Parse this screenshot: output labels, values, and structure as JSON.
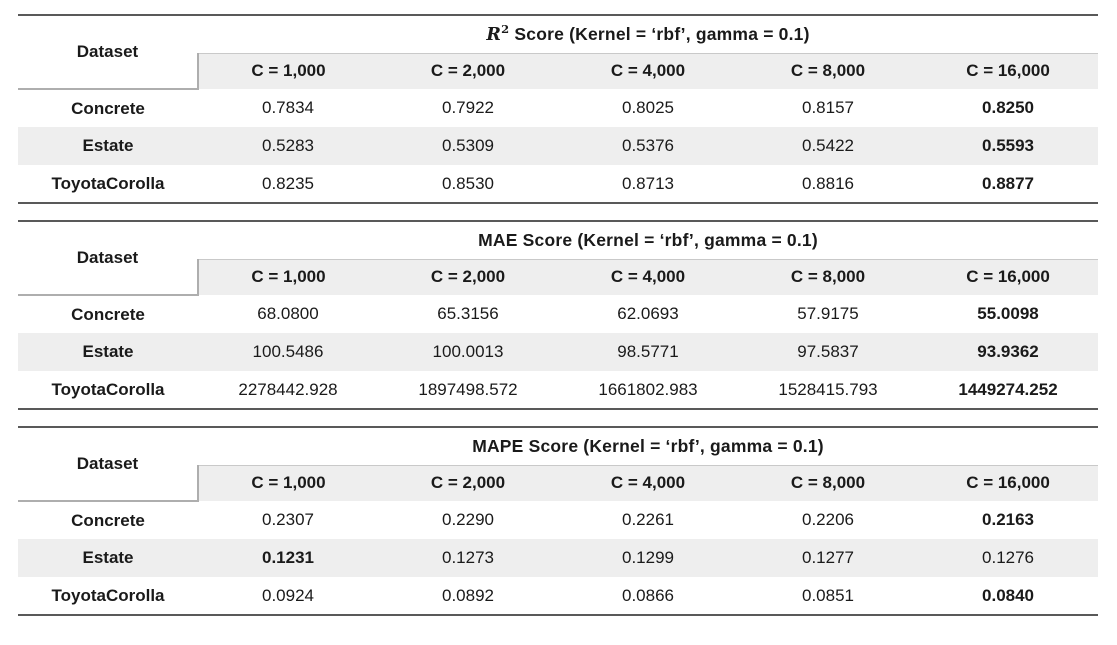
{
  "colors": {
    "text": "#1a1a1a",
    "band_fill": "#eeeeee",
    "outer_rule": "#595959",
    "inner_rule": "#aeaeae",
    "thin_rule": "#c9c9c9"
  },
  "header_label": "Dataset",
  "columns": [
    "C = 1,000",
    "C = 2,000",
    "C = 4,000",
    "C = 8,000",
    "C = 16,000"
  ],
  "tables": [
    {
      "metric": "R2",
      "title": {
        "math": "R",
        "sup": "2",
        "rest": " Score (Kernel = ‘rbf’, gamma = 0.1)"
      },
      "rows": [
        {
          "dataset": "Concrete",
          "values": [
            "0.7834",
            "0.7922",
            "0.8025",
            "0.8157",
            "0.8250"
          ],
          "bold": [
            4
          ]
        },
        {
          "dataset": "Estate",
          "values": [
            "0.5283",
            "0.5309",
            "0.5376",
            "0.5422",
            "0.5593"
          ],
          "bold": [
            4
          ]
        },
        {
          "dataset": "ToyotaCorolla",
          "values": [
            "0.8235",
            "0.8530",
            "0.8713",
            "0.8816",
            "0.8877"
          ],
          "bold": [
            4
          ]
        }
      ]
    },
    {
      "metric": "MAE",
      "title": {
        "math": "",
        "sup": "",
        "rest": "MAE Score (Kernel = ‘rbf’, gamma = 0.1)"
      },
      "rows": [
        {
          "dataset": "Concrete",
          "values": [
            "68.0800",
            "65.3156",
            "62.0693",
            "57.9175",
            "55.0098"
          ],
          "bold": [
            4
          ]
        },
        {
          "dataset": "Estate",
          "values": [
            "100.5486",
            "100.0013",
            "98.5771",
            "97.5837",
            "93.9362"
          ],
          "bold": [
            4
          ]
        },
        {
          "dataset": "ToyotaCorolla",
          "values": [
            "2278442.928",
            "1897498.572",
            "1661802.983",
            "1528415.793",
            "1449274.252"
          ],
          "bold": [
            4
          ]
        }
      ]
    },
    {
      "metric": "MAPE",
      "title": {
        "math": "",
        "sup": "",
        "rest": "MAPE Score (Kernel = ‘rbf’, gamma = 0.1)"
      },
      "rows": [
        {
          "dataset": "Concrete",
          "values": [
            "0.2307",
            "0.2290",
            "0.2261",
            "0.2206",
            "0.2163"
          ],
          "bold": [
            4
          ]
        },
        {
          "dataset": "Estate",
          "values": [
            "0.1231",
            "0.1273",
            "0.1299",
            "0.1277",
            "0.1276"
          ],
          "bold": [
            0
          ]
        },
        {
          "dataset": "ToyotaCorolla",
          "values": [
            "0.0924",
            "0.0892",
            "0.0866",
            "0.0851",
            "0.0840"
          ],
          "bold": [
            4
          ]
        }
      ]
    }
  ]
}
